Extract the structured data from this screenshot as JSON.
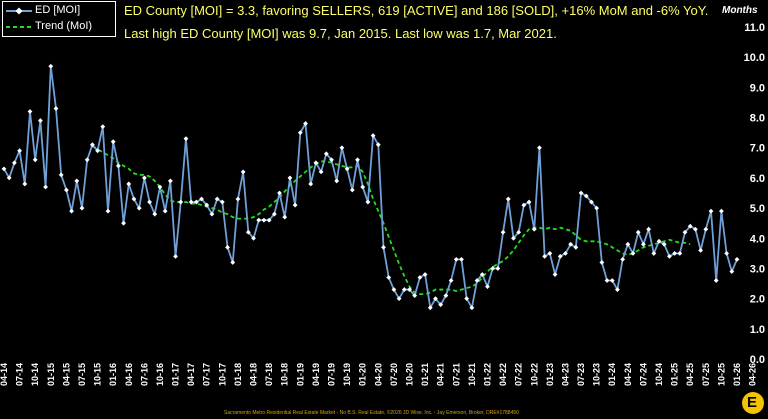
{
  "chart_data": {
    "type": "line",
    "title": "",
    "xlabel": "",
    "ylabel": "",
    "y_unit_label": "Months",
    "ylim": [
      0,
      11
    ],
    "yticks": [
      "0.0",
      "1.0",
      "2.0",
      "3.0",
      "4.0",
      "5.0",
      "6.0",
      "7.0",
      "8.0",
      "9.0",
      "10.0",
      "11.0"
    ],
    "grid": false,
    "legend_position": "top-left",
    "x_tick_labels": [
      "04-14",
      "07-14",
      "10-14",
      "01-15",
      "04-15",
      "07-15",
      "10-15",
      "01-16",
      "04-16",
      "07-16",
      "10-16",
      "01-17",
      "04-17",
      "07-17",
      "10-17",
      "01-18",
      "04-18",
      "07-18",
      "10-18",
      "01-19",
      "04-19",
      "07-19",
      "10-19",
      "01-20",
      "04-20",
      "07-20",
      "10-20",
      "01-21",
      "04-21",
      "07-21",
      "10-21",
      "01-22",
      "04-22",
      "07-22",
      "10-22",
      "01-23",
      "04-23",
      "07-23",
      "10-23",
      "01-24",
      "04-24",
      "07-24",
      "10-24",
      "01-25",
      "04-25",
      "07-25",
      "10-25",
      "01-26",
      "04-26"
    ],
    "series": [
      {
        "name": "ED [MOI]",
        "color": "#6fa1d8",
        "marker": "diamond",
        "values": [
          6.3,
          6.0,
          6.5,
          6.9,
          5.8,
          8.2,
          6.6,
          7.9,
          5.7,
          9.7,
          8.3,
          6.1,
          5.6,
          4.9,
          5.9,
          5.0,
          6.6,
          7.1,
          6.9,
          7.7,
          4.9,
          7.2,
          6.4,
          4.5,
          5.8,
          5.3,
          5.0,
          6.0,
          5.2,
          4.8,
          5.7,
          4.9,
          5.9,
          3.4,
          5.2,
          7.3,
          5.2,
          5.2,
          5.3,
          5.1,
          4.8,
          5.3,
          5.2,
          3.7,
          3.2,
          5.3,
          6.2,
          4.2,
          4.0,
          4.6,
          4.6,
          4.6,
          4.8,
          5.5,
          4.7,
          6.0,
          5.1,
          7.5,
          7.8,
          5.8,
          6.5,
          6.2,
          6.8,
          6.6,
          5.9,
          7.0,
          6.3,
          5.6,
          6.6,
          5.7,
          5.2,
          7.4,
          7.1,
          3.7,
          2.7,
          2.3,
          2.0,
          2.3,
          2.3,
          2.1,
          2.7,
          2.8,
          1.7,
          2.0,
          1.8,
          2.1,
          2.6,
          3.3,
          3.3,
          2.0,
          1.7,
          2.6,
          2.8,
          2.4,
          3.0,
          3.0,
          4.2,
          5.3,
          4.0,
          4.2,
          5.1,
          5.2,
          4.3,
          7.0,
          3.4,
          3.5,
          2.8,
          3.4,
          3.5,
          3.8,
          3.7,
          5.5,
          5.4,
          5.2,
          5.0,
          3.2,
          2.6,
          2.6,
          2.3,
          3.3,
          3.8,
          3.5,
          4.2,
          3.8,
          4.3,
          3.5,
          3.9,
          3.8,
          3.4,
          3.5,
          3.5,
          4.2,
          4.4,
          4.3,
          3.6,
          4.3,
          4.9,
          2.6,
          4.9,
          3.5,
          2.9,
          3.3
        ]
      },
      {
        "name": "Trend (MoI)",
        "color": "#22dd22",
        "dashed": true,
        "start_index": 17,
        "values": [
          7.05,
          6.95,
          6.85,
          6.75,
          6.65,
          6.5,
          6.4,
          6.3,
          6.15,
          6.1,
          6.1,
          6.05,
          5.9,
          5.7,
          5.45,
          5.25,
          5.2,
          5.2,
          5.2,
          5.15,
          5.15,
          5.1,
          5.05,
          5.0,
          4.95,
          4.85,
          4.8,
          4.7,
          4.65,
          4.65,
          4.65,
          4.7,
          4.8,
          4.95,
          5.05,
          5.2,
          5.35,
          5.55,
          5.75,
          5.9,
          6.05,
          6.2,
          6.35,
          6.45,
          6.55,
          6.55,
          6.5,
          6.45,
          6.4,
          6.35,
          6.35,
          6.4,
          6.2,
          5.8,
          5.3,
          4.9,
          4.5,
          4.05,
          3.6,
          3.15,
          2.75,
          2.4,
          2.2,
          2.15,
          2.15,
          2.2,
          2.3,
          2.3,
          2.3,
          2.3,
          2.25,
          2.3,
          2.35,
          2.4,
          2.5,
          2.7,
          2.9,
          3.05,
          3.15,
          3.25,
          3.4,
          3.6,
          3.85,
          4.1,
          4.3,
          4.35,
          4.35,
          4.3,
          4.35,
          4.3,
          4.35,
          4.3,
          4.25,
          4.1,
          3.95,
          3.9,
          3.9,
          3.9,
          3.85,
          3.8,
          3.7,
          3.6,
          3.5,
          3.45,
          3.5,
          3.6,
          3.7,
          3.75,
          3.8,
          3.85,
          3.9,
          3.95,
          3.9,
          3.85,
          3.85,
          3.8
        ]
      }
    ],
    "annotations": [
      "ED County [MOI] = 3.3, favoring SELLERS, 619 [ACTIVE] and 186 [SOLD], +16% MoM and -6% YoY.",
      "Last high ED County [MOI] was 9.7, Jan 2015. Last low was 1.7, Mar 2021."
    ],
    "footer": "Sacramento Metro Residential Real Estate Market - No B.S. Real Estate, ©2026 JD Wise, Inc. - Jay Emerson, Broker, DRE#1788450"
  },
  "logo_letter": "E"
}
